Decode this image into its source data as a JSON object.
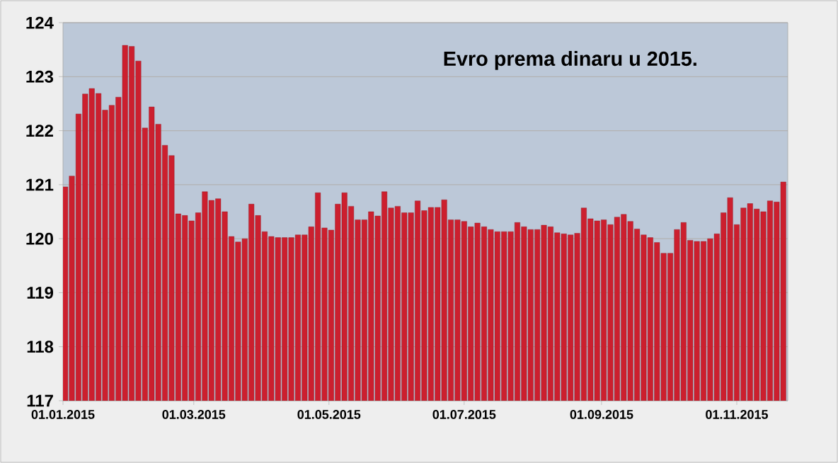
{
  "chart_data": {
    "type": "bar",
    "title": "Evro prema dinaru u 2015.",
    "color": "#cc1f2e",
    "x": [
      "2015-01-02",
      "2015-01-05",
      "2015-01-08",
      "2015-01-11",
      "2015-01-14",
      "2015-01-17",
      "2015-01-20",
      "2015-01-23",
      "2015-01-26",
      "2015-01-29",
      "2015-02-01",
      "2015-02-04",
      "2015-02-07",
      "2015-02-10",
      "2015-02-13",
      "2015-02-16",
      "2015-02-19",
      "2015-02-22",
      "2015-02-25",
      "2015-02-28",
      "2015-03-03",
      "2015-03-06",
      "2015-03-09",
      "2015-03-12",
      "2015-03-15",
      "2015-03-18",
      "2015-03-21",
      "2015-03-24",
      "2015-03-27",
      "2015-03-30",
      "2015-04-02",
      "2015-04-05",
      "2015-04-08",
      "2015-04-11",
      "2015-04-14",
      "2015-04-17",
      "2015-04-20",
      "2015-04-23",
      "2015-04-26",
      "2015-04-29",
      "2015-05-02",
      "2015-05-05",
      "2015-05-08",
      "2015-05-11",
      "2015-05-14",
      "2015-05-17",
      "2015-05-20",
      "2015-05-23",
      "2015-05-26",
      "2015-05-29",
      "2015-06-01",
      "2015-06-04",
      "2015-06-07",
      "2015-06-10",
      "2015-06-13",
      "2015-06-16",
      "2015-06-19",
      "2015-06-22",
      "2015-06-25",
      "2015-06-28",
      "2015-07-01",
      "2015-07-04",
      "2015-07-07",
      "2015-07-10",
      "2015-07-13",
      "2015-07-16",
      "2015-07-19",
      "2015-07-22",
      "2015-07-25",
      "2015-07-28",
      "2015-07-31",
      "2015-08-03",
      "2015-08-06",
      "2015-08-09",
      "2015-08-12",
      "2015-08-15",
      "2015-08-18",
      "2015-08-21",
      "2015-08-24",
      "2015-08-27",
      "2015-08-30",
      "2015-09-02",
      "2015-09-05",
      "2015-09-08",
      "2015-09-11",
      "2015-09-14",
      "2015-09-17",
      "2015-09-20",
      "2015-09-23",
      "2015-09-26",
      "2015-09-29",
      "2015-10-02",
      "2015-10-05",
      "2015-10-08",
      "2015-10-11",
      "2015-10-14",
      "2015-10-17",
      "2015-10-20",
      "2015-10-23",
      "2015-10-26",
      "2015-10-29",
      "2015-11-01",
      "2015-11-04",
      "2015-11-07",
      "2015-11-10",
      "2015-11-13",
      "2015-11-16",
      "2015-11-19",
      "2015-11-22"
    ],
    "values": [
      120.96,
      121.16,
      122.31,
      122.68,
      122.78,
      122.69,
      122.38,
      122.47,
      122.62,
      123.58,
      123.56,
      123.29,
      122.05,
      122.44,
      122.12,
      121.73,
      121.54,
      120.46,
      120.43,
      120.33,
      120.48,
      120.87,
      120.71,
      120.74,
      120.5,
      120.04,
      119.94,
      120.0,
      120.64,
      120.43,
      120.13,
      120.04,
      120.02,
      120.02,
      120.02,
      120.07,
      120.07,
      120.22,
      120.85,
      120.2,
      120.16,
      120.64,
      120.85,
      120.6,
      120.35,
      120.35,
      120.5,
      120.42,
      120.87,
      120.57,
      120.6,
      120.48,
      120.48,
      120.7,
      120.52,
      120.58,
      120.58,
      120.72,
      120.35,
      120.35,
      120.32,
      120.22,
      120.29,
      120.22,
      120.17,
      120.13,
      120.13,
      120.13,
      120.3,
      120.22,
      120.17,
      120.17,
      120.25,
      120.22,
      120.11,
      120.09,
      120.07,
      120.1,
      120.57,
      120.37,
      120.33,
      120.35,
      120.26,
      120.4,
      120.45,
      120.32,
      120.18,
      120.07,
      120.02,
      119.93,
      119.73,
      119.73,
      120.17,
      120.3,
      119.97,
      119.95,
      119.95,
      120.0,
      120.09,
      120.48,
      120.76,
      120.26,
      120.57,
      120.65,
      120.55,
      120.5,
      120.7,
      120.68,
      121.05
    ],
    "xlim": [
      "2015-01-01",
      "2015-11-24"
    ],
    "xticks": [
      {
        "value": "2015-01-01",
        "label": "01.01.2015"
      },
      {
        "value": "2015-03-01",
        "label": "01.03.2015"
      },
      {
        "value": "2015-05-01",
        "label": "01.05.2015"
      },
      {
        "value": "2015-07-01",
        "label": "01.07.2015"
      },
      {
        "value": "2015-09-01",
        "label": "01.09.2015"
      },
      {
        "value": "2015-11-01",
        "label": "01.11.2015"
      }
    ],
    "ylim": [
      117,
      124
    ],
    "yticks": [
      117,
      118,
      119,
      120,
      121,
      122,
      123,
      124
    ],
    "grid": "y"
  }
}
